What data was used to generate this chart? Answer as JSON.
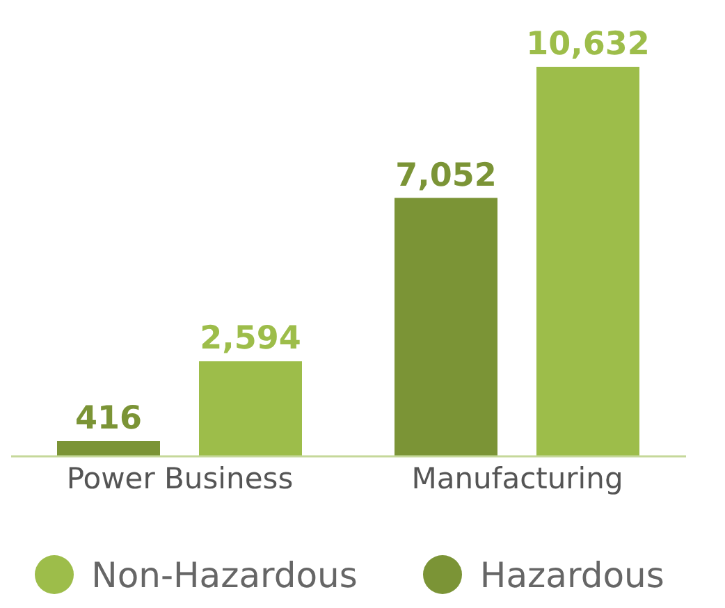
{
  "chart_data": {
    "type": "bar",
    "categories": [
      "Power Business",
      "Manufacturing"
    ],
    "series": [
      {
        "name": "Hazardous",
        "color": "#7b9436",
        "values": [
          416,
          7052
        ],
        "value_labels": [
          "416",
          "7,052"
        ]
      },
      {
        "name": "Non-Hazardous",
        "color": "#9dbd4a",
        "values": [
          2594,
          10632
        ],
        "value_labels": [
          "2,594",
          "10,632"
        ]
      }
    ],
    "legend": "bottom",
    "grid": false
  }
}
